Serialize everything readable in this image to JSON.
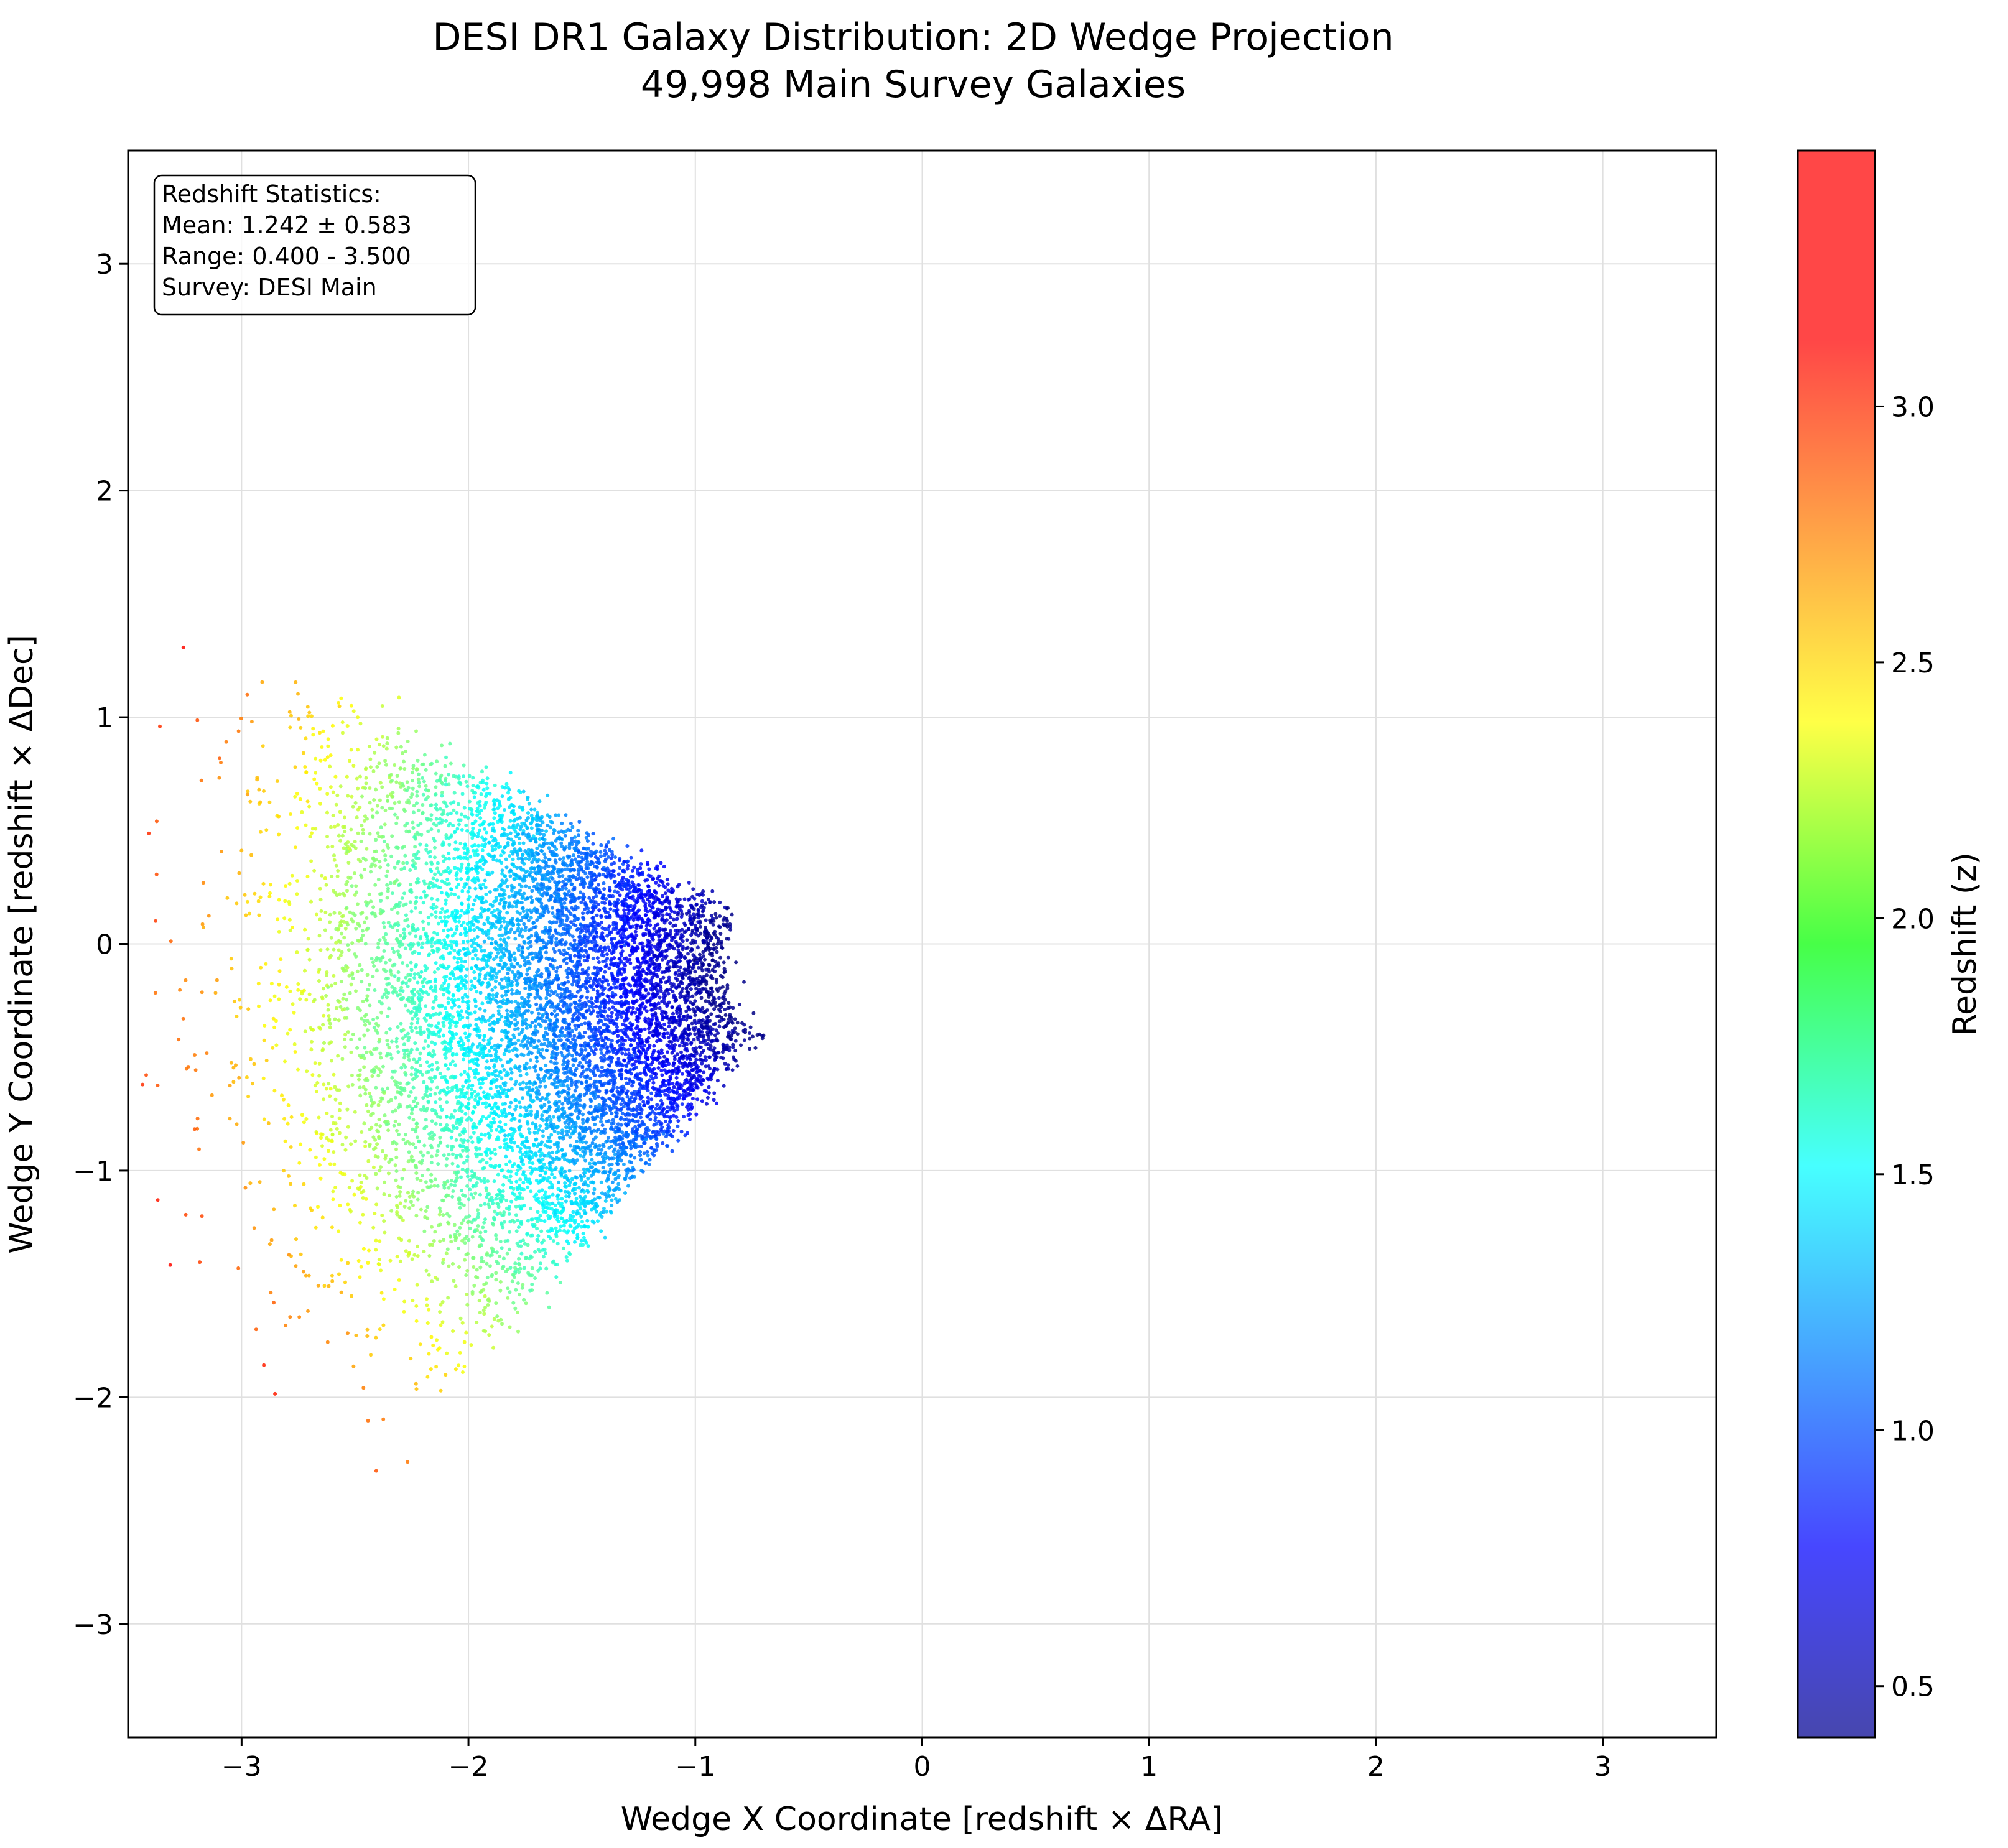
{
  "chart_data": {
    "type": "scatter",
    "title": "DESI DR1 Galaxy Distribution: 2D Wedge Projection",
    "subtitle": "49,998 Main Survey Galaxies",
    "xlabel": "Wedge X Coordinate [redshift × ΔRA]",
    "ylabel": "Wedge Y Coordinate [redshift × ΔDec]",
    "xlim": [
      -3.5,
      3.5
    ],
    "ylim": [
      -3.5,
      3.5
    ],
    "x_ticks": [
      -3,
      -2,
      -1,
      0,
      1,
      2,
      3
    ],
    "x_tick_labels": [
      "−3",
      "−2",
      "−1",
      "0",
      "1",
      "2",
      "3"
    ],
    "y_ticks": [
      -3,
      -2,
      -1,
      0,
      1,
      2,
      3
    ],
    "y_tick_labels": [
      "−3",
      "−2",
      "−1",
      "0",
      "1",
      "2",
      "3"
    ],
    "grid": true,
    "colorbar": {
      "label": "Redshift (z)",
      "range": [
        0.4,
        3.5
      ],
      "ticks": [
        0.5,
        1.0,
        1.5,
        2.0,
        2.5,
        3.0
      ],
      "tick_labels": [
        "0.5",
        "1.0",
        "1.5",
        "2.0",
        "2.5",
        "3.0"
      ],
      "colormap": "jet",
      "alpha": 0.7
    },
    "stats_box": {
      "position": "top-left",
      "lines": [
        "Redshift Statistics:",
        "Mean: 1.242 ± 0.583",
        "Range: 0.400 - 3.500",
        "Survey: DESI Main"
      ]
    },
    "points": {
      "count": 49998,
      "description": "Each galaxy plotted at (z·cosθ, z·sinθ) within a wedge; colour encodes redshift z",
      "redshift_mean": 1.242,
      "redshift_std": 0.583,
      "redshift_min": 0.4,
      "redshift_max": 3.5,
      "angle_range_deg": [
        150,
        230
      ],
      "center_offset": [
        -0.5,
        -0.1
      ]
    }
  }
}
